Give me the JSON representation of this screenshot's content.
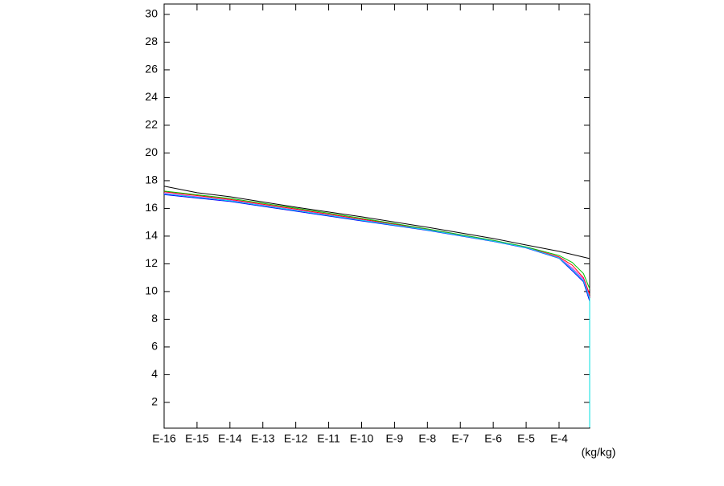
{
  "chart_data": {
    "type": "line",
    "xlabel": "(kg/kg)",
    "log_x": true,
    "xlim": [
      1e-16,
      0.00085
    ],
    "ylim": [
      0.14,
      30.75
    ],
    "xticks": [
      {
        "value": 1e-16,
        "label": "E-16"
      },
      {
        "value": 1e-15,
        "label": "E-15"
      },
      {
        "value": 1e-14,
        "label": "E-14"
      },
      {
        "value": 1e-13,
        "label": "E-13"
      },
      {
        "value": 1e-12,
        "label": "E-12"
      },
      {
        "value": 1e-11,
        "label": "E-11"
      },
      {
        "value": 1e-10,
        "label": "E-10"
      },
      {
        "value": 1e-09,
        "label": "E-9"
      },
      {
        "value": 1e-08,
        "label": "E-8"
      },
      {
        "value": 1e-07,
        "label": "E-7"
      },
      {
        "value": 1e-06,
        "label": "E-6"
      },
      {
        "value": 1e-05,
        "label": "E-5"
      },
      {
        "value": 0.0001,
        "label": "E-4"
      }
    ],
    "yticks": [
      2,
      4,
      6,
      8,
      10,
      12,
      14,
      16,
      18,
      20,
      22,
      24,
      26,
      28,
      30
    ],
    "series": [
      {
        "color": "#000000",
        "x": [
          1e-16,
          1e-15,
          1e-14,
          1e-12,
          1e-10,
          1e-08,
          1e-06,
          1e-05,
          0.0001,
          0.00085
        ],
        "y": [
          17.6,
          17.13,
          16.84,
          16.09,
          15.39,
          14.64,
          13.83,
          13.36,
          12.9,
          12.38
        ]
      },
      {
        "color": "#ff0000",
        "x": [
          1e-16,
          1e-14,
          1e-12,
          1e-10,
          1e-08,
          1e-06,
          1e-05,
          0.0001,
          0.00025,
          0.00055,
          0.00085
        ],
        "y": [
          17.2,
          16.65,
          15.95,
          15.22,
          14.5,
          13.68,
          13.2,
          12.5,
          11.9,
          11.0,
          9.8
        ]
      },
      {
        "color": "#00c000",
        "x": [
          1e-16,
          1e-14,
          1e-12,
          1e-10,
          1e-08,
          1e-06,
          1e-05,
          0.0001,
          0.00025,
          0.00055,
          0.00085
        ],
        "y": [
          17.25,
          16.72,
          16.02,
          15.28,
          14.52,
          13.7,
          13.22,
          12.6,
          12.1,
          11.3,
          10.2
        ]
      },
      {
        "color": "#0000ff",
        "x": [
          1e-16,
          1e-14,
          1e-12,
          1e-10,
          1e-08,
          1e-06,
          1e-05,
          0.0001,
          0.00025,
          0.00055,
          0.00085
        ],
        "y": [
          17.0,
          16.5,
          15.8,
          15.1,
          14.42,
          13.62,
          13.15,
          12.4,
          11.5,
          10.7,
          9.3
        ]
      },
      {
        "color": "#ff00ff",
        "x": [
          1e-16,
          1e-14,
          1e-12,
          1e-10,
          1e-08,
          1e-06,
          1e-05,
          0.0001,
          0.00025,
          0.00055,
          0.00085
        ],
        "y": [
          17.1,
          16.58,
          15.88,
          15.16,
          14.46,
          13.65,
          13.18,
          12.45,
          11.7,
          10.9,
          9.6
        ]
      },
      {
        "color": "#00e0e0",
        "x": [
          1e-16,
          1e-14,
          1e-12,
          1e-10,
          1e-08,
          1e-06,
          1e-05,
          0.0001,
          0.00025,
          0.00055,
          0.00085,
          0.00085
        ],
        "y": [
          17.05,
          16.55,
          15.85,
          15.14,
          14.45,
          13.64,
          13.17,
          12.42,
          11.6,
          10.8,
          9.5,
          0.2
        ]
      }
    ]
  }
}
